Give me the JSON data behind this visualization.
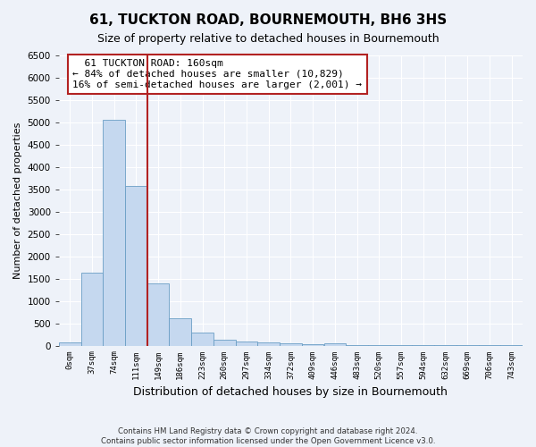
{
  "title": "61, TUCKTON ROAD, BOURNEMOUTH, BH6 3HS",
  "subtitle": "Size of property relative to detached houses in Bournemouth",
  "xlabel": "Distribution of detached houses by size in Bournemouth",
  "ylabel": "Number of detached properties",
  "footer_line1": "Contains HM Land Registry data © Crown copyright and database right 2024.",
  "footer_line2": "Contains public sector information licensed under the Open Government Licence v3.0.",
  "bar_labels": [
    "0sqm",
    "37sqm",
    "74sqm",
    "111sqm",
    "149sqm",
    "186sqm",
    "223sqm",
    "260sqm",
    "297sqm",
    "334sqm",
    "372sqm",
    "409sqm",
    "446sqm",
    "483sqm",
    "520sqm",
    "557sqm",
    "594sqm",
    "632sqm",
    "669sqm",
    "706sqm",
    "743sqm"
  ],
  "bar_values": [
    75,
    1630,
    5060,
    3570,
    1400,
    620,
    290,
    135,
    90,
    75,
    55,
    30,
    55,
    10,
    5,
    5,
    5,
    5,
    5,
    5,
    5
  ],
  "bar_color": "#c5d8ef",
  "bar_edge_color": "#6a9ec5",
  "ylim": [
    0,
    6500
  ],
  "yticks": [
    0,
    500,
    1000,
    1500,
    2000,
    2500,
    3000,
    3500,
    4000,
    4500,
    5000,
    5500,
    6000,
    6500
  ],
  "vline_x": 4.0,
  "vline_color": "#b22222",
  "annotation_text": "  61 TUCKTON ROAD: 160sqm\n← 84% of detached houses are smaller (10,829)\n16% of semi-detached houses are larger (2,001) →",
  "annotation_box_color": "#b22222",
  "background_color": "#eef2f9",
  "grid_color": "#ffffff",
  "title_fontsize": 11,
  "subtitle_fontsize": 9
}
